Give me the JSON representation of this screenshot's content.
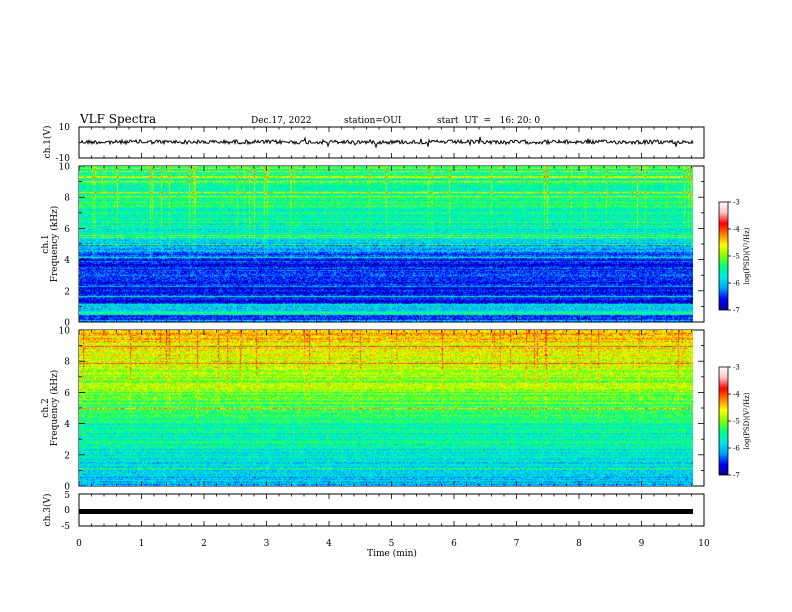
{
  "header": {
    "title": "VLF Spectra",
    "date": "Dec.17, 2022",
    "station": "station=OUI",
    "start": "start  UT  =   16: 20: 0"
  },
  "colors": {
    "colormap": [
      "#0a0090",
      "#0000ff",
      "#00a0ff",
      "#00e8e8",
      "#00ff80",
      "#80ff00",
      "#ffff00",
      "#ff8000",
      "#ff0000",
      "#ffc0c0",
      "#ffffff"
    ],
    "trace": "#000000"
  },
  "chart_data": [
    {
      "type": "line",
      "id": "ch1-waveform",
      "ylabel": "ch.1(V)",
      "yticks": [
        "10",
        "-10"
      ],
      "ylim": [
        -10,
        10
      ],
      "xlim": [
        0,
        10
      ],
      "description_values": {
        "mean": 0,
        "amplitude": 1.2,
        "end_minute": 9.8
      }
    },
    {
      "type": "heatmap",
      "id": "ch1-spectrogram",
      "ylabel": "ch.1\nFrequency  (kHz)",
      "yticks": [
        "0",
        "2",
        "4",
        "6",
        "8",
        "10"
      ],
      "ylim": [
        0,
        10
      ],
      "xlim": [
        0,
        10
      ],
      "colorbar": {
        "label": "log(PSD)(V²/Hz)",
        "ticks": [
          "-3",
          "-4",
          "-5",
          "-6",
          "-7"
        ],
        "range": [
          -7,
          -3
        ]
      }
    },
    {
      "type": "heatmap",
      "id": "ch2-spectrogram",
      "ylabel": "ch.2\nFrequency  (kHz)",
      "yticks": [
        "0",
        "2",
        "4",
        "6",
        "8",
        "10"
      ],
      "ylim": [
        0,
        10
      ],
      "xlim": [
        0,
        10
      ],
      "colorbar": {
        "label": "log(PSD)(V²/Hz)",
        "ticks": [
          "-3",
          "-4",
          "-5",
          "-6",
          "-7"
        ],
        "range": [
          -7,
          -3
        ]
      }
    },
    {
      "type": "line",
      "id": "ch3-waveform",
      "ylabel": "ch.3(V)",
      "yticks": [
        "5",
        "0",
        "-5"
      ],
      "ylim": [
        -5,
        5
      ],
      "xlim": [
        0,
        10
      ],
      "description_values": {
        "mean": -1.5,
        "amplitude": 0.1,
        "end_minute": 9.8
      }
    }
  ],
  "xaxis": {
    "label": "Time  (min)",
    "ticks": [
      "0",
      "1",
      "2",
      "3",
      "4",
      "5",
      "6",
      "7",
      "8",
      "9",
      "10"
    ]
  }
}
